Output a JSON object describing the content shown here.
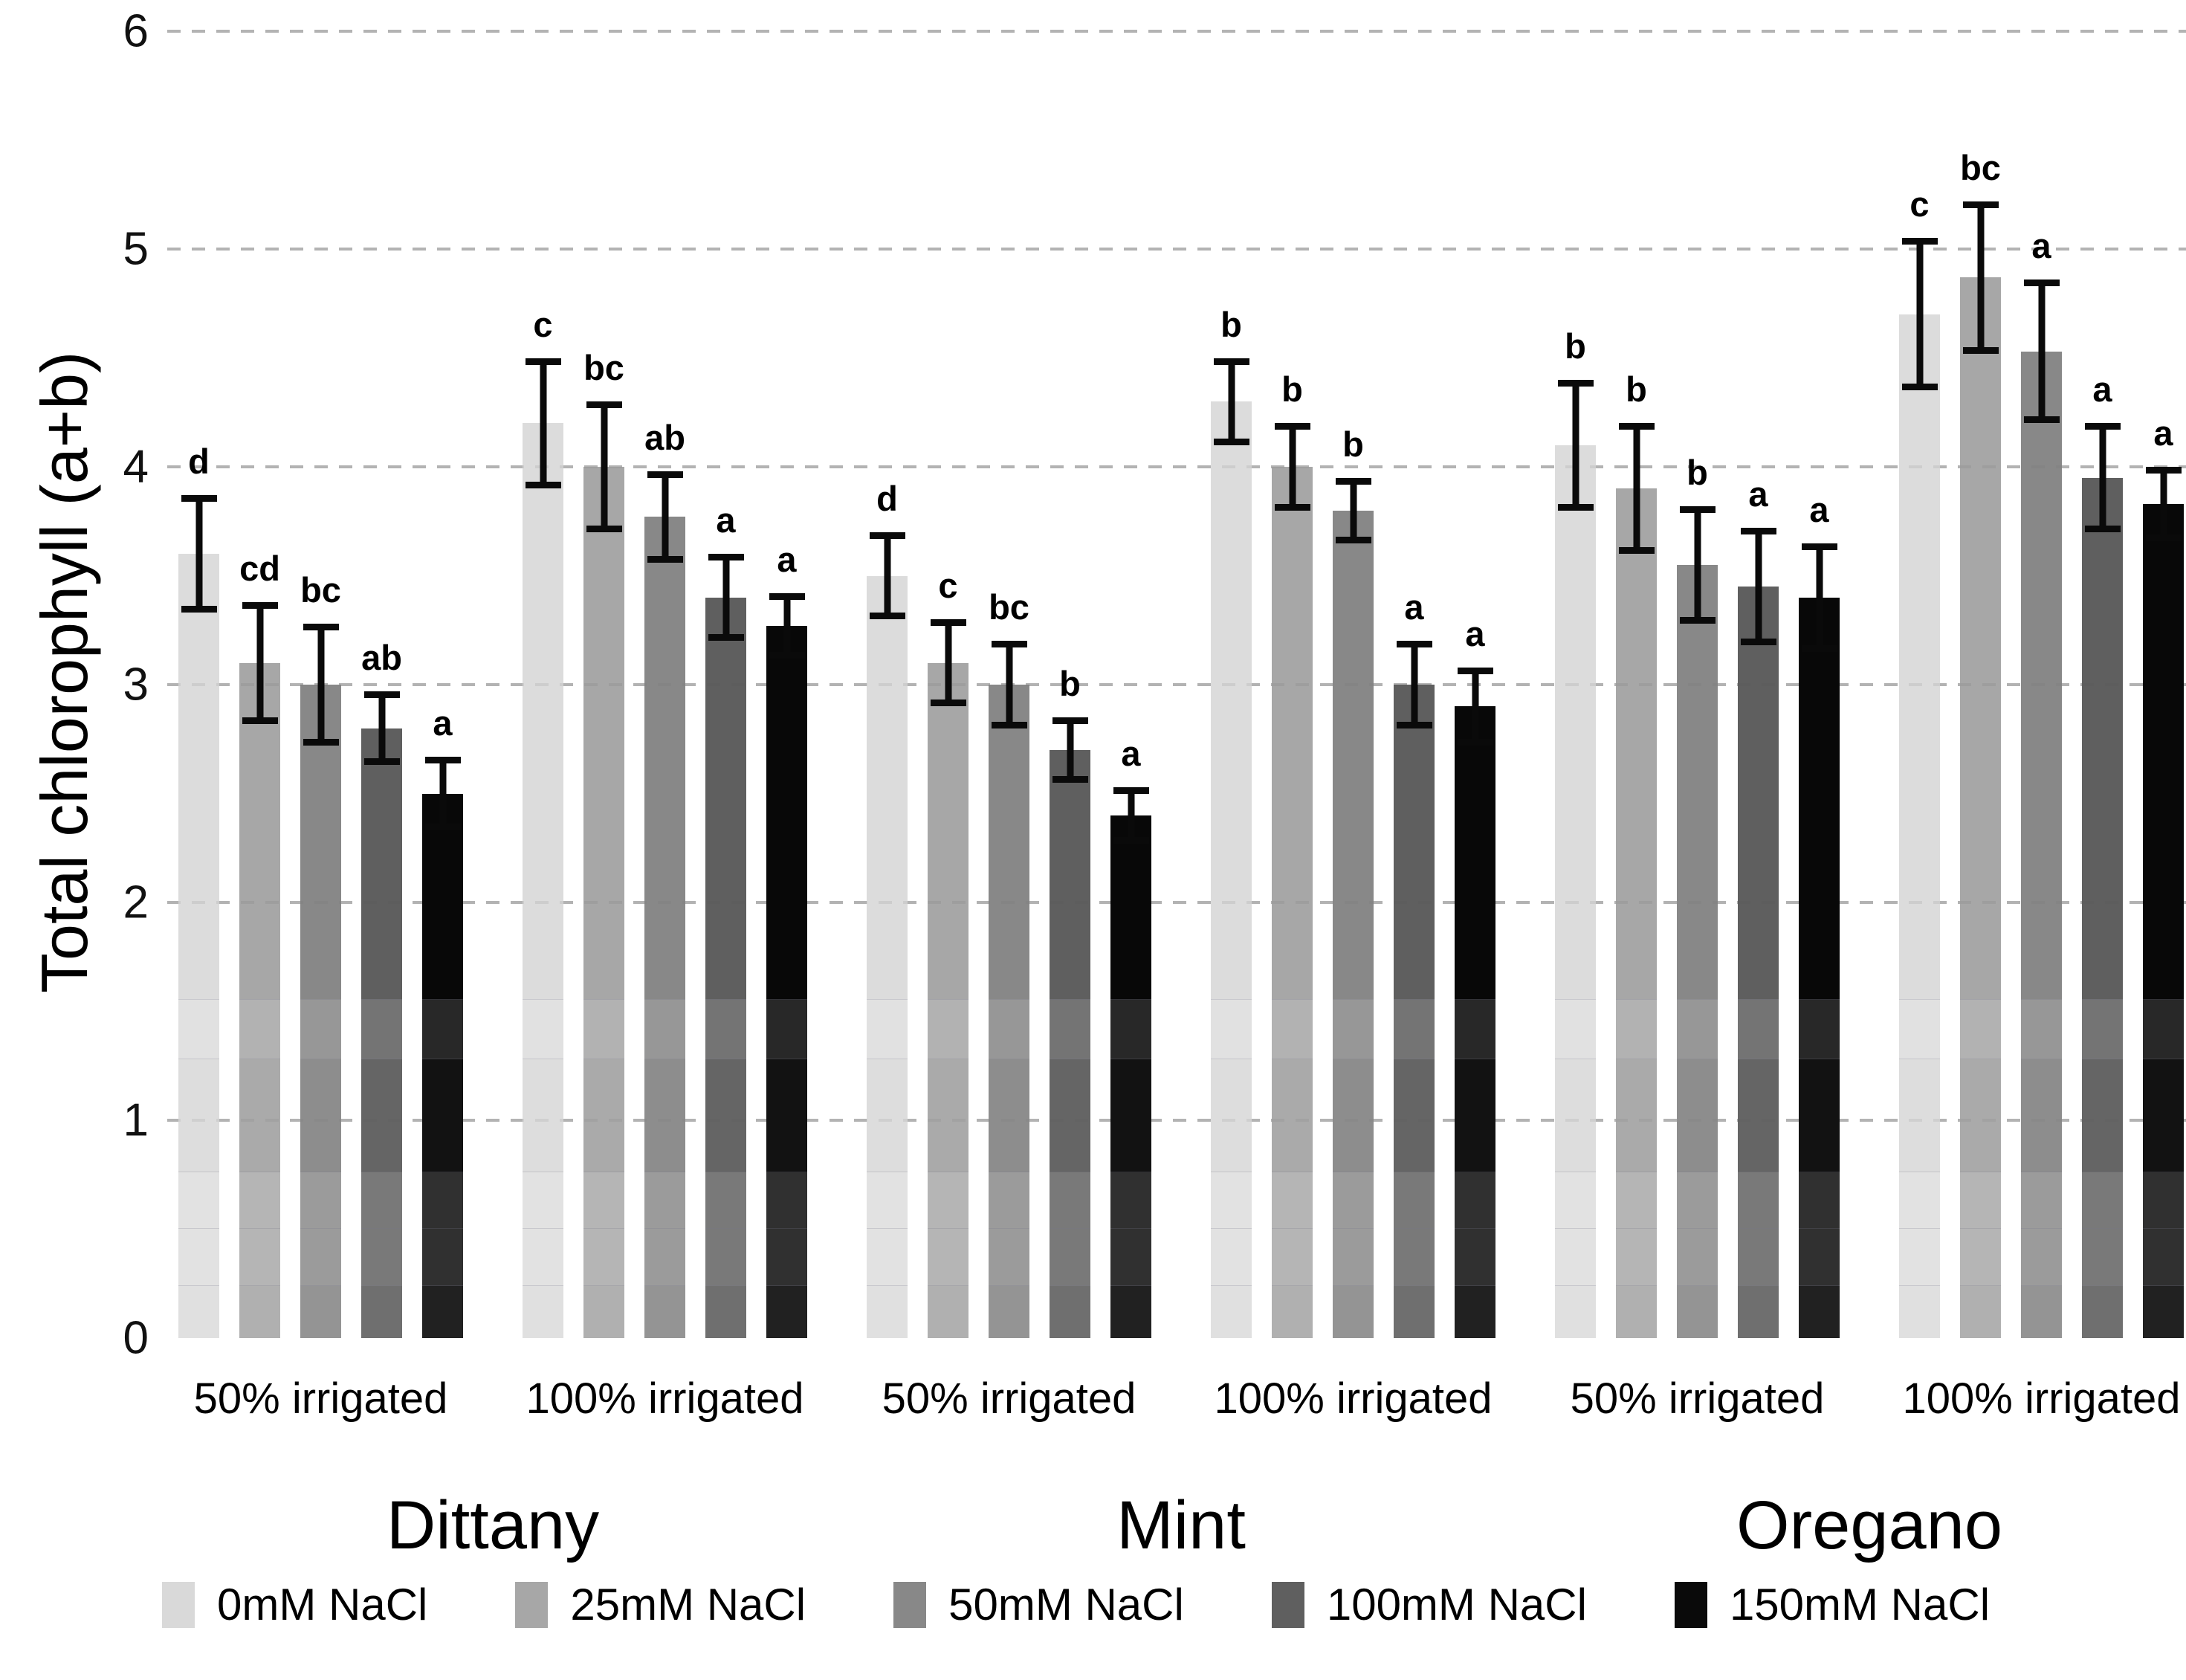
{
  "chart_data": {
    "type": "bar",
    "title": "",
    "ylabel": "Total chlorophyll (a+b)",
    "xlabel": "",
    "ylim": [
      0,
      6
    ],
    "yticks": [
      0,
      1,
      2,
      3,
      4,
      5,
      6
    ],
    "grid": "horizontal-dashed",
    "legend_position": "bottom",
    "series_names": [
      "0mM NaCl",
      "25mM NaCl",
      "50mM NaCl",
      "100mM NaCl",
      "150mM NaCl"
    ],
    "series_colors": [
      "#d9d9d9",
      "#a7a7a7",
      "#888888",
      "#5f5f5f",
      "#0a0a0a"
    ],
    "species_labels": [
      "Dittany",
      "Mint",
      "Oregano"
    ],
    "groups": [
      {
        "species": "Dittany",
        "irrigation": "50% irrigated",
        "values": [
          3.6,
          3.1,
          3.0,
          2.8,
          2.5
        ],
        "errors": [
          0.27,
          0.28,
          0.28,
          0.17,
          0.17
        ],
        "letters": [
          "d",
          "cd",
          "bc",
          "ab",
          "a"
        ]
      },
      {
        "species": "Dittany",
        "irrigation": "100% irrigated",
        "values": [
          4.2,
          4.0,
          3.77,
          3.4,
          3.27
        ],
        "errors": [
          0.3,
          0.3,
          0.21,
          0.2,
          0.15
        ],
        "letters": [
          "c",
          "bc",
          "ab",
          "a",
          "a"
        ]
      },
      {
        "species": "Mint",
        "irrigation": "50% irrigated",
        "values": [
          3.5,
          3.1,
          3.0,
          2.7,
          2.4
        ],
        "errors": [
          0.2,
          0.2,
          0.2,
          0.15,
          0.13
        ],
        "letters": [
          "d",
          "c",
          "bc",
          "b",
          "a"
        ]
      },
      {
        "species": "Mint",
        "irrigation": "100% irrigated",
        "values": [
          4.3,
          4.0,
          3.8,
          3.0,
          2.9
        ],
        "errors": [
          0.2,
          0.2,
          0.15,
          0.2,
          0.18
        ],
        "letters": [
          "b",
          "b",
          "b",
          "a",
          "a"
        ]
      },
      {
        "species": "Oregano",
        "irrigation": "50% irrigated",
        "values": [
          4.1,
          3.9,
          3.55,
          3.45,
          3.4
        ],
        "errors": [
          0.3,
          0.3,
          0.27,
          0.27,
          0.25
        ],
        "letters": [
          "b",
          "b",
          "b",
          "a",
          "a"
        ]
      },
      {
        "species": "Oregano",
        "irrigation": "100% irrigated",
        "values": [
          4.7,
          4.87,
          4.53,
          3.95,
          3.83
        ],
        "errors": [
          0.35,
          0.35,
          0.33,
          0.25,
          0.17
        ],
        "letters": [
          "c",
          "bc",
          "a",
          "a",
          "a"
        ]
      }
    ],
    "x_group_labels": [
      "50% irrigated",
      "100% irrigated",
      "50% irrigated",
      "100% irrigated",
      "50% irrigated",
      "100% irrigated"
    ]
  },
  "layout_colors": {
    "grid": "#b3b3b3",
    "text": "#000000",
    "background": "#ffffff"
  }
}
